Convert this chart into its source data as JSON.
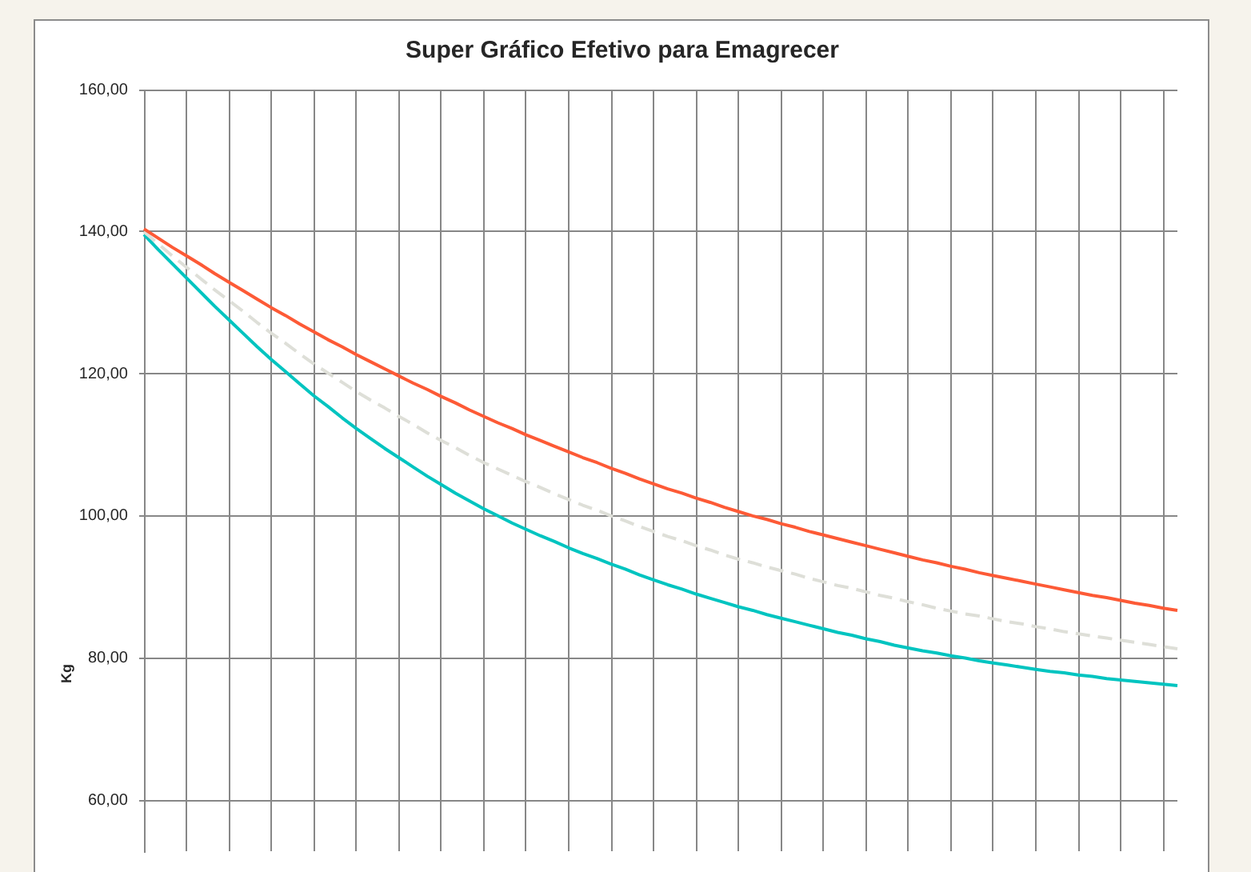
{
  "chart_data": {
    "type": "line",
    "title": "Super Gráfico Efetivo para Emagrecer",
    "ylabel": "Kg",
    "categories": [
      null,
      null,
      null,
      null,
      null,
      null,
      null,
      null,
      null,
      null,
      null,
      null,
      null,
      null,
      null,
      null,
      null,
      null,
      null,
      null,
      null,
      null,
      null,
      null,
      null,
      null,
      null,
      null,
      null,
      null,
      null,
      null,
      null,
      null,
      null,
      null,
      null,
      null,
      null,
      null,
      null,
      null,
      null,
      null,
      null,
      null,
      null,
      null,
      null,
      null,
      null,
      null,
      null,
      null,
      null,
      null,
      null,
      null,
      null,
      null,
      null,
      null,
      null,
      null,
      null,
      null,
      null,
      null,
      null,
      null,
      null,
      null,
      null,
      null
    ],
    "series": [
      {
        "color": "#fd5a36",
        "values": [
          140.4,
          139.1,
          137.8,
          136.6,
          135.4,
          134.1,
          132.9,
          131.7,
          130.5,
          129.3,
          128.2,
          127.0,
          125.9,
          124.8,
          123.8,
          122.7,
          121.7,
          120.7,
          119.7,
          118.7,
          117.8,
          116.8,
          115.9,
          114.9,
          114.0,
          113.1,
          112.3,
          111.4,
          110.6,
          109.8,
          109.0,
          108.2,
          107.5,
          106.7,
          106.0,
          105.2,
          104.5,
          103.8,
          103.2,
          102.5,
          101.9,
          101.2,
          100.6,
          100.0,
          99.5,
          98.9,
          98.4,
          97.8,
          97.3,
          96.8,
          96.3,
          95.8,
          95.3,
          94.8,
          94.3,
          93.8,
          93.4,
          92.9,
          92.5,
          92.0,
          91.6,
          91.2,
          90.8,
          90.4,
          90.0,
          89.6,
          89.2,
          88.8,
          88.5,
          88.1,
          87.7,
          87.4,
          87.0,
          86.7
        ]
      },
      {
        "color": "#dedfd8",
        "line_style": "dashed",
        "values": [
          140.0,
          138.3,
          136.6,
          135.0,
          133.4,
          131.8,
          130.3,
          128.8,
          127.2,
          125.7,
          124.3,
          122.8,
          121.4,
          120.1,
          118.8,
          117.5,
          116.3,
          115.2,
          114.0,
          112.9,
          111.7,
          110.6,
          109.6,
          108.5,
          107.5,
          106.6,
          105.7,
          104.8,
          104.0,
          103.1,
          102.3,
          101.5,
          100.8,
          100.0,
          99.3,
          98.5,
          97.8,
          97.1,
          96.5,
          95.8,
          95.2,
          94.5,
          93.9,
          93.4,
          92.8,
          92.3,
          91.8,
          91.2,
          90.7,
          90.2,
          89.8,
          89.3,
          88.8,
          88.4,
          87.9,
          87.5,
          87.0,
          86.6,
          86.2,
          85.9,
          85.5,
          85.1,
          84.8,
          84.4,
          84.1,
          83.7,
          83.4,
          83.1,
          82.8,
          82.5,
          82.2,
          81.9,
          81.6,
          81.3
        ]
      },
      {
        "color": "#00c4c0",
        "values": [
          139.6,
          137.5,
          135.5,
          133.5,
          131.5,
          129.5,
          127.6,
          125.7,
          123.8,
          122.0,
          120.3,
          118.6,
          116.9,
          115.4,
          113.8,
          112.3,
          110.9,
          109.5,
          108.2,
          106.9,
          105.6,
          104.4,
          103.2,
          102.1,
          101.0,
          100.0,
          99.0,
          98.1,
          97.2,
          96.4,
          95.5,
          94.7,
          94.0,
          93.2,
          92.5,
          91.7,
          91.0,
          90.3,
          89.7,
          89.0,
          88.4,
          87.8,
          87.2,
          86.7,
          86.1,
          85.6,
          85.1,
          84.6,
          84.1,
          83.6,
          83.2,
          82.7,
          82.3,
          81.8,
          81.4,
          81.0,
          80.7,
          80.3,
          80.0,
          79.6,
          79.3,
          79.0,
          78.7,
          78.4,
          78.1,
          77.9,
          77.6,
          77.4,
          77.1,
          76.9,
          76.7,
          76.5,
          76.3,
          76.1
        ]
      }
    ],
    "ylim": [
      52.8,
      160
    ],
    "yticks": [
      {
        "value": 60,
        "label": "60,00"
      },
      {
        "value": 80,
        "label": "80,00"
      },
      {
        "value": 100,
        "label": "100,00"
      },
      {
        "value": 120,
        "label": "120,00"
      },
      {
        "value": 140,
        "label": "140,00"
      },
      {
        "value": 160,
        "label": "160,00"
      }
    ],
    "grid": true,
    "tick_labels": "y"
  }
}
